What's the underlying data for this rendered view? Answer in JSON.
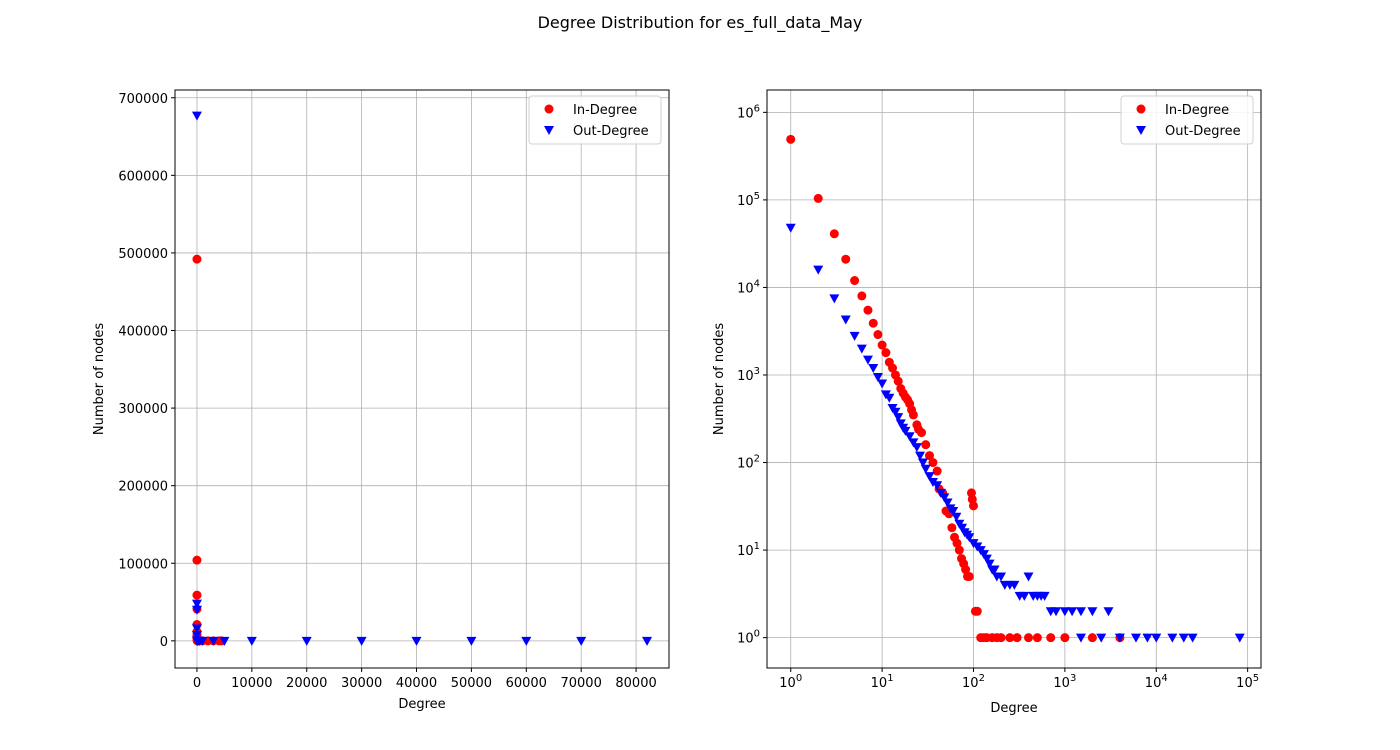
{
  "figure_title": "Degree Distribution for es_full_data_May",
  "colors": {
    "in_degree": "#ff0000",
    "out_degree": "#0000ff",
    "grid": "#b0b0b0"
  },
  "chart_data": [
    {
      "type": "scatter",
      "scale": "linear",
      "xlabel": "Degree",
      "ylabel": "Number of nodes",
      "xlim": [
        -4000,
        86000
      ],
      "ylim": [
        -35000,
        710000
      ],
      "xticks": [
        0,
        10000,
        20000,
        30000,
        40000,
        50000,
        60000,
        70000,
        80000
      ],
      "yticks": [
        0,
        100000,
        200000,
        300000,
        400000,
        500000,
        600000,
        700000
      ],
      "xtick_labels": [
        "0",
        "10000",
        "20000",
        "30000",
        "40000",
        "50000",
        "60000",
        "70000",
        "80000"
      ],
      "ytick_labels": [
        "0",
        "100000",
        "200000",
        "300000",
        "400000",
        "500000",
        "600000",
        "700000"
      ],
      "grid": true,
      "legend": "top-right",
      "series": [
        {
          "name": "In-Degree",
          "marker": "circle",
          "points": [
            [
              1,
              492000
            ],
            [
              2,
              104000
            ],
            [
              3,
              59000
            ],
            [
              4,
              41000
            ],
            [
              5,
              21000
            ],
            [
              6,
              12000
            ],
            [
              7,
              8000
            ],
            [
              10,
              3000
            ],
            [
              20,
              600
            ],
            [
              50,
              80
            ],
            [
              100,
              30
            ],
            [
              200,
              3
            ],
            [
              500,
              1
            ],
            [
              1000,
              1
            ],
            [
              2000,
              1
            ],
            [
              3000,
              1
            ],
            [
              4000,
              1
            ],
            [
              4500,
              1
            ]
          ]
        },
        {
          "name": "Out-Degree",
          "marker": "triangle-down",
          "points": [
            [
              1,
              677000
            ],
            [
              2,
              48000
            ],
            [
              3,
              40000
            ],
            [
              4,
              16000
            ],
            [
              5,
              7500
            ],
            [
              10,
              600
            ],
            [
              20,
              200
            ],
            [
              50,
              40
            ],
            [
              100,
              15
            ],
            [
              200,
              5
            ],
            [
              500,
              3
            ],
            [
              1000,
              2
            ],
            [
              3000,
              2
            ],
            [
              5000,
              1
            ],
            [
              10000,
              1
            ],
            [
              20000,
              1
            ],
            [
              30000,
              1
            ],
            [
              40000,
              1
            ],
            [
              50000,
              1
            ],
            [
              60000,
              1
            ],
            [
              70000,
              1
            ],
            [
              82000,
              1
            ]
          ]
        }
      ]
    },
    {
      "type": "scatter",
      "scale": "log",
      "xlabel": "Degree",
      "ylabel": "Number of nodes",
      "xlim": [
        0.55,
        140000
      ],
      "ylim": [
        0.45,
        1800000
      ],
      "xtick_bases": [
        "10",
        "10",
        "10",
        "10",
        "10",
        "10"
      ],
      "xtick_exponents": [
        "0",
        "1",
        "2",
        "3",
        "4",
        "5"
      ],
      "ytick_bases": [
        "10",
        "10",
        "10",
        "10",
        "10",
        "10",
        "10"
      ],
      "ytick_exponents": [
        "0",
        "1",
        "2",
        "3",
        "4",
        "5",
        "6"
      ],
      "grid": true,
      "legend": "top-right",
      "series": [
        {
          "name": "In-Degree",
          "marker": "circle",
          "points": [
            [
              1,
              492000
            ],
            [
              2,
              104000
            ],
            [
              3,
              41000
            ],
            [
              4,
              21000
            ],
            [
              5,
              12000
            ],
            [
              6,
              8000
            ],
            [
              7,
              5500
            ],
            [
              8,
              3900
            ],
            [
              9,
              2900
            ],
            [
              10,
              2200
            ],
            [
              11,
              1800
            ],
            [
              12,
              1400
            ],
            [
              13,
              1200
            ],
            [
              14,
              1000
            ],
            [
              15,
              850
            ],
            [
              16,
              700
            ],
            [
              17,
              620
            ],
            [
              18,
              560
            ],
            [
              19,
              520
            ],
            [
              20,
              470
            ],
            [
              21,
              400
            ],
            [
              22,
              350
            ],
            [
              24,
              270
            ],
            [
              25,
              240
            ],
            [
              27,
              220
            ],
            [
              30,
              160
            ],
            [
              33,
              120
            ],
            [
              36,
              100
            ],
            [
              40,
              80
            ],
            [
              42,
              50
            ],
            [
              46,
              45
            ],
            [
              50,
              28
            ],
            [
              54,
              26
            ],
            [
              58,
              18
            ],
            [
              62,
              14
            ],
            [
              66,
              12
            ],
            [
              70,
              10
            ],
            [
              74,
              8
            ],
            [
              78,
              7
            ],
            [
              82,
              6
            ],
            [
              86,
              5
            ],
            [
              90,
              5
            ],
            [
              95,
              45
            ],
            [
              97,
              38
            ],
            [
              100,
              32
            ],
            [
              105,
              2
            ],
            [
              110,
              2
            ],
            [
              120,
              1
            ],
            [
              130,
              1
            ],
            [
              140,
              1
            ],
            [
              160,
              1
            ],
            [
              180,
              1
            ],
            [
              200,
              1
            ],
            [
              250,
              1
            ],
            [
              300,
              1
            ],
            [
              400,
              1
            ],
            [
              500,
              1
            ],
            [
              700,
              1
            ],
            [
              1000,
              1
            ],
            [
              2000,
              1
            ],
            [
              4000,
              1
            ]
          ]
        },
        {
          "name": "Out-Degree",
          "marker": "triangle-down",
          "points": [
            [
              1,
              48000
            ],
            [
              2,
              16000
            ],
            [
              3,
              7500
            ],
            [
              4,
              4300
            ],
            [
              5,
              2800
            ],
            [
              6,
              2000
            ],
            [
              7,
              1500
            ],
            [
              8,
              1200
            ],
            [
              9,
              950
            ],
            [
              10,
              800
            ],
            [
              11,
              600
            ],
            [
              12,
              550
            ],
            [
              13,
              420
            ],
            [
              14,
              380
            ],
            [
              15,
              330
            ],
            [
              16,
              280
            ],
            [
              17,
              250
            ],
            [
              18,
              230
            ],
            [
              20,
              200
            ],
            [
              22,
              170
            ],
            [
              24,
              150
            ],
            [
              26,
              120
            ],
            [
              28,
              100
            ],
            [
              30,
              85
            ],
            [
              33,
              70
            ],
            [
              36,
              60
            ],
            [
              40,
              55
            ],
            [
              44,
              45
            ],
            [
              48,
              40
            ],
            [
              52,
              35
            ],
            [
              56,
              30
            ],
            [
              60,
              28
            ],
            [
              65,
              24
            ],
            [
              70,
              20
            ],
            [
              75,
              18
            ],
            [
              80,
              16
            ],
            [
              85,
              15
            ],
            [
              90,
              14
            ],
            [
              100,
              12
            ],
            [
              110,
              11
            ],
            [
              120,
              10
            ],
            [
              130,
              9
            ],
            [
              140,
              8
            ],
            [
              150,
              7
            ],
            [
              160,
              6
            ],
            [
              170,
              6
            ],
            [
              180,
              5
            ],
            [
              200,
              5
            ],
            [
              220,
              4
            ],
            [
              250,
              4
            ],
            [
              280,
              4
            ],
            [
              320,
              3
            ],
            [
              360,
              3
            ],
            [
              400,
              5
            ],
            [
              450,
              3
            ],
            [
              500,
              3
            ],
            [
              550,
              3
            ],
            [
              600,
              3
            ],
            [
              700,
              2
            ],
            [
              800,
              2
            ],
            [
              1000,
              2
            ],
            [
              1200,
              2
            ],
            [
              1500,
              2
            ],
            [
              2000,
              2
            ],
            [
              3000,
              2
            ],
            [
              1500,
              1
            ],
            [
              2500,
              1
            ],
            [
              4000,
              1
            ],
            [
              6000,
              1
            ],
            [
              8000,
              1
            ],
            [
              10000,
              1
            ],
            [
              15000,
              1
            ],
            [
              20000,
              1
            ],
            [
              25000,
              1
            ],
            [
              82000,
              1
            ]
          ]
        }
      ]
    }
  ]
}
